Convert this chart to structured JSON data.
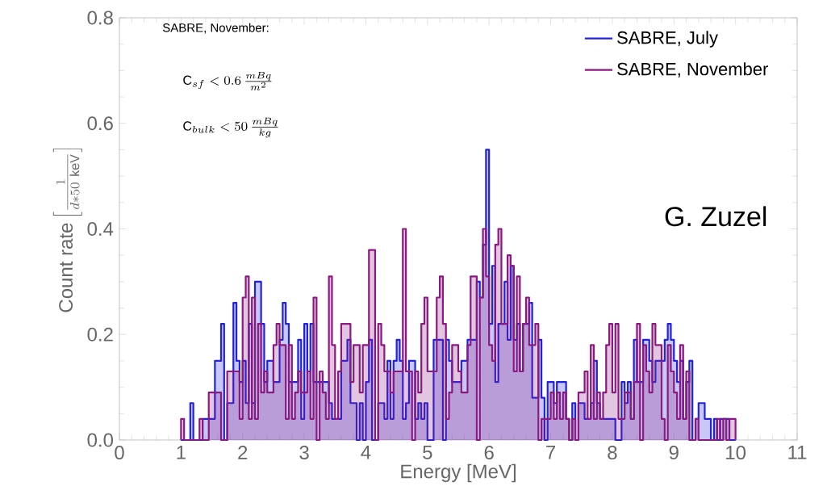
{
  "chart_data": {
    "type": "histogram",
    "xlabel": "Energy [MeV]",
    "ylabel": "\\mathrm{Count\\ rate}\\left[\\frac{1}{d*50\\ \\mathrm{keV}}\\right]",
    "annotations": [
      "SABRE, November:",
      "\\mathrm{C}_{sf} < 0.6\\,\\frac{mBq}{m^2}",
      "\\mathrm{C}_{bulk} < 50\\,\\frac{mBq}{kg}",
      "G. Zuzel"
    ],
    "xlim": [
      0,
      11
    ],
    "ylim": [
      0,
      0.8
    ],
    "xticks": [
      0,
      1,
      2,
      3,
      4,
      5,
      6,
      7,
      8,
      9,
      10,
      11
    ],
    "yticks": [
      {
        "value": 0,
        "label": "0.0"
      },
      {
        "value": 0.2,
        "label": "0.2"
      },
      {
        "value": 0.4,
        "label": "0.4"
      },
      {
        "value": 0.6,
        "label": "0.6"
      },
      {
        "value": 0.8,
        "label": "0.8"
      }
    ],
    "legend": "top right",
    "bins": [
      1.0,
      1.05,
      1.1,
      1.15,
      1.2,
      1.25,
      1.3,
      1.35,
      1.4,
      1.45,
      1.5,
      1.55,
      1.6,
      1.65,
      1.7,
      1.75,
      1.8,
      1.85,
      1.9,
      1.95,
      2.0,
      2.05,
      2.1,
      2.15,
      2.2,
      2.25,
      2.3,
      2.35,
      2.4,
      2.45,
      2.5,
      2.55,
      2.6,
      2.65,
      2.7,
      2.75,
      2.8,
      2.85,
      2.9,
      2.95,
      3.0,
      3.05,
      3.1,
      3.15,
      3.2,
      3.25,
      3.3,
      3.35,
      3.4,
      3.45,
      3.5,
      3.55,
      3.6,
      3.65,
      3.7,
      3.75,
      3.8,
      3.85,
      3.9,
      3.95,
      4.0,
      4.05,
      4.1,
      4.15,
      4.2,
      4.25,
      4.3,
      4.35,
      4.4,
      4.45,
      4.5,
      4.55,
      4.6,
      4.65,
      4.7,
      4.75,
      4.8,
      4.85,
      4.9,
      4.95,
      5.0,
      5.05,
      5.1,
      5.15,
      5.2,
      5.25,
      5.3,
      5.35,
      5.4,
      5.45,
      5.5,
      5.55,
      5.6,
      5.65,
      5.7,
      5.75,
      5.8,
      5.85,
      5.9,
      5.95,
      6.0,
      6.05,
      6.1,
      6.15,
      6.2,
      6.25,
      6.3,
      6.35,
      6.4,
      6.45,
      6.5,
      6.55,
      6.6,
      6.65,
      6.7,
      6.75,
      6.8,
      6.85,
      6.9,
      6.95,
      7.0,
      7.05,
      7.1,
      7.15,
      7.2,
      7.25,
      7.3,
      7.35,
      7.4,
      7.45,
      7.5,
      7.55,
      7.6,
      7.65,
      7.7,
      7.75,
      7.8,
      7.85,
      7.9,
      7.95,
      8.0,
      8.05,
      8.1,
      8.15,
      8.2,
      8.25,
      8.3,
      8.35,
      8.4,
      8.45,
      8.5,
      8.55,
      8.6,
      8.65,
      8.7,
      8.75,
      8.8,
      8.85,
      8.9,
      8.95,
      9.0,
      9.05,
      9.1,
      9.15,
      9.2,
      9.25,
      9.3,
      9.35,
      9.4,
      9.45,
      9.5,
      9.55,
      9.6,
      9.65,
      9.7,
      9.75,
      9.8,
      9.85,
      9.9,
      9.95,
      10.0
    ],
    "series": [
      {
        "name": "SABRE, July",
        "color": "#2222dd",
        "values": [
          0,
          0,
          0,
          0.07,
          0,
          0,
          0,
          0.04,
          0.04,
          0.04,
          0.04,
          0.15,
          0.15,
          0.22,
          0,
          0.07,
          0.07,
          0.26,
          0.15,
          0.11,
          0.15,
          0.07,
          0.22,
          0.07,
          0.3,
          0.3,
          0.22,
          0.11,
          0.15,
          0.15,
          0.11,
          0.11,
          0.19,
          0.26,
          0.22,
          0.11,
          0.11,
          0.11,
          0.19,
          0.04,
          0.22,
          0.13,
          0.22,
          0.11,
          0.11,
          0.11,
          0.11,
          0.11,
          0.07,
          0.04,
          0.04,
          0.04,
          0.15,
          0.15,
          0.19,
          0.07,
          0.07,
          0,
          0.07,
          0,
          0.11,
          0.19,
          0,
          0,
          0.07,
          0.07,
          0.04,
          0.15,
          0.04,
          0.15,
          0.19,
          0.15,
          0.04,
          0.07,
          0.15,
          0.15,
          0.04,
          0.07,
          0.04,
          0.07,
          0,
          0,
          0.19,
          0.19,
          0.19,
          0,
          0.19,
          0.15,
          0.11,
          0.11,
          0.11,
          0.15,
          0.15,
          0.19,
          0.19,
          0.19,
          0.3,
          0.27,
          0.37,
          0.55,
          0.22,
          0.33,
          0.11,
          0.22,
          0.22,
          0.3,
          0.19,
          0.33,
          0.19,
          0.22,
          0.13,
          0.22,
          0.22,
          0.26,
          0.08,
          0.08,
          0.19,
          0.08,
          0,
          0.11,
          0.11,
          0.07,
          0.11,
          0.11,
          0.11,
          0.04,
          0,
          0.07,
          0,
          0.07,
          0.07,
          0.04,
          0.04,
          0.07,
          0.15,
          0.07,
          0.04,
          0.04,
          0.04,
          0.04,
          0.04,
          0,
          0,
          0.11,
          0.07,
          0.11,
          0.04,
          0.19,
          0.11,
          0.11,
          0.19,
          0.19,
          0.15,
          0.11,
          0.15,
          0.15,
          0.15,
          0.19,
          0.22,
          0.19,
          0.15,
          0.11,
          0.15,
          0.04,
          0.11,
          0.15,
          0,
          0.04,
          0.07,
          0.07,
          0.04,
          0.04,
          0,
          0.04,
          0,
          0.04,
          0.04,
          0.04,
          0,
          0
        ]
      },
      {
        "name": "SABRE, November",
        "color": "#8b1a80",
        "values": [
          0.04,
          0,
          0,
          0,
          0,
          0,
          0.04,
          0,
          0,
          0.09,
          0.09,
          0.09,
          0.09,
          0,
          0,
          0.13,
          0.13,
          0.13,
          0.13,
          0.04,
          0.27,
          0.31,
          0.04,
          0.27,
          0.04,
          0.22,
          0.09,
          0.13,
          0.09,
          0.09,
          0.18,
          0.22,
          0.18,
          0.18,
          0.04,
          0.18,
          0.04,
          0.09,
          0.13,
          0.09,
          0.09,
          0.13,
          0.04,
          0.27,
          0,
          0.13,
          0.09,
          0.04,
          0.31,
          0.18,
          0.04,
          0.13,
          0.22,
          0.22,
          0.22,
          0.11,
          0.18,
          0.18,
          0.09,
          0.18,
          0.18,
          0.36,
          0.36,
          0,
          0.22,
          0.18,
          0.13,
          0.13,
          0.09,
          0.13,
          0.13,
          0.13,
          0.4,
          0.13,
          0.13,
          0,
          0.13,
          0.09,
          0.22,
          0.27,
          0.13,
          0.13,
          0.13,
          0.27,
          0.31,
          0.22,
          0.04,
          0.09,
          0.18,
          0.18,
          0.13,
          0.09,
          0.09,
          0.18,
          0.31,
          0.31,
          0,
          0.27,
          0.4,
          0.31,
          0.18,
          0.15,
          0.37,
          0.4,
          0.22,
          0.22,
          0.35,
          0.33,
          0.13,
          0.31,
          0.13,
          0.22,
          0.27,
          0.18,
          0.18,
          0.22,
          0,
          0.04,
          0.04,
          0.04,
          0.09,
          0.04,
          0.09,
          0.04,
          0.09,
          0.04,
          0,
          0.04,
          0,
          0.09,
          0.09,
          0.13,
          0.04,
          0.18,
          0.04,
          0.09,
          0.04,
          0.09,
          0.18,
          0.22,
          0.09,
          0.22,
          0.04,
          0.04,
          0.09,
          0.09,
          0.04,
          0.11,
          0.22,
          0,
          0.18,
          0.13,
          0.09,
          0.22,
          0.18,
          0.18,
          0.04,
          0,
          0.18,
          0.13,
          0.09,
          0.04,
          0.18,
          0.04,
          0.13,
          0,
          0,
          0.04,
          0,
          0,
          0,
          0,
          0,
          0,
          0.04,
          0,
          0.04,
          0,
          0.04,
          0.04
        ]
      }
    ]
  }
}
